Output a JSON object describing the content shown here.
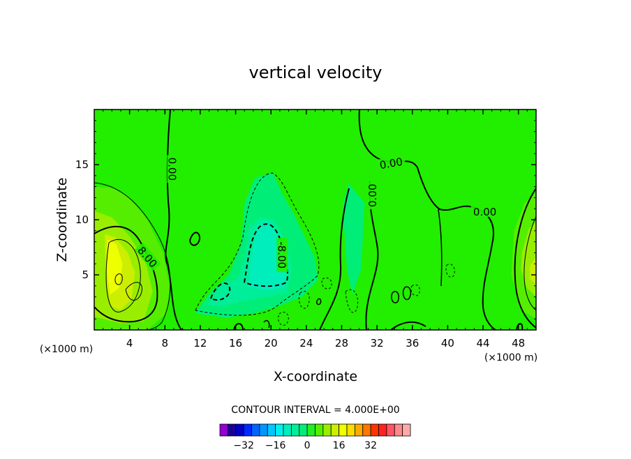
{
  "chart_data": {
    "type": "heatmap",
    "title": "vertical velocity",
    "xlabel": "X-coordinate",
    "ylabel": "Z-coordinate",
    "x_unit_left": "(×1000 m)",
    "x_unit_right": "(×1000 m)",
    "xlim": [
      0,
      50
    ],
    "ylim": [
      0,
      20
    ],
    "x_ticks": [
      4,
      8,
      12,
      16,
      20,
      24,
      28,
      32,
      36,
      40,
      44,
      48
    ],
    "y_ticks": [
      5,
      10,
      15
    ],
    "contour_interval_text": "CONTOUR INTERVAL = 4.000E+00",
    "contour_labels": [
      {
        "text": "0.00",
        "x": 8.8,
        "y": 14.6,
        "rotate": 90
      },
      {
        "text": "8.00",
        "x": 6.0,
        "y": 6.6,
        "rotate": 50
      },
      {
        "text": "-8.00",
        "x": 21.2,
        "y": 6.8,
        "rotate": 90
      },
      {
        "text": "0.00",
        "x": 33.6,
        "y": 15.1,
        "rotate": -10
      },
      {
        "text": "0.00",
        "x": 31.5,
        "y": 12.2,
        "rotate": -90
      },
      {
        "text": "0.00",
        "x": 44.2,
        "y": 10.7,
        "rotate": 0
      }
    ],
    "regions": [
      {
        "level": 4,
        "color": "#55ee00",
        "points": [
          [
            0,
            13
          ],
          [
            2,
            12.9
          ],
          [
            4,
            12
          ],
          [
            6,
            10
          ],
          [
            7.8,
            7
          ],
          [
            8.5,
            4
          ],
          [
            8.2,
            1.5
          ],
          [
            6,
            0
          ],
          [
            0,
            0
          ]
        ]
      },
      {
        "level": 8,
        "color": "#99ee00",
        "points": [
          [
            0,
            10.8
          ],
          [
            2,
            10.2
          ],
          [
            4,
            8.5
          ],
          [
            5.8,
            6.2
          ],
          [
            6.6,
            3.5
          ],
          [
            5.6,
            0.8
          ],
          [
            3,
            0.6
          ],
          [
            0,
            1.2
          ]
        ]
      },
      {
        "level": 12,
        "color": "#ccee00",
        "points": [
          [
            1.2,
            8.7
          ],
          [
            2.4,
            8.4
          ],
          [
            3.8,
            7
          ],
          [
            4.6,
            5.2
          ],
          [
            4.2,
            2.8
          ],
          [
            3,
            1.8
          ],
          [
            1.8,
            2.2
          ],
          [
            1.3,
            4.5
          ]
        ]
      },
      {
        "level": 16,
        "color": "#eeff00",
        "points": [
          [
            1.5,
            8.2
          ],
          [
            2.5,
            7.8
          ],
          [
            3.2,
            6
          ],
          [
            2.8,
            3.8
          ],
          [
            1.8,
            3.2
          ],
          [
            1.4,
            5.5
          ]
        ]
      },
      {
        "level": -4,
        "color": "#00ee77",
        "points": [
          [
            11.4,
            1.5
          ],
          [
            13,
            3.3
          ],
          [
            15.2,
            5
          ],
          [
            16.6,
            7.8
          ],
          [
            17,
            11.5
          ],
          [
            18.2,
            13.8
          ],
          [
            20.2,
            14.3
          ],
          [
            21.2,
            12.5
          ],
          [
            22.6,
            10.5
          ],
          [
            25,
            6.5
          ],
          [
            25.3,
            4.5
          ],
          [
            23.5,
            3
          ],
          [
            21,
            2.2
          ],
          [
            18.5,
            1.6
          ],
          [
            15,
            1.1
          ]
        ]
      },
      {
        "level": -8,
        "color": "#00ee99",
        "points": [
          [
            12.8,
            2.3
          ],
          [
            14.5,
            4.2
          ],
          [
            16.2,
            4.6
          ],
          [
            17,
            6.5
          ],
          [
            17.5,
            9.2
          ],
          [
            18.8,
            10.2
          ],
          [
            20.3,
            10
          ],
          [
            21.7,
            8
          ],
          [
            22.4,
            5.5
          ],
          [
            21.8,
            3.4
          ],
          [
            19.6,
            3
          ],
          [
            16.6,
            2.6
          ],
          [
            14.5,
            2.2
          ]
        ]
      },
      {
        "level": -12,
        "color": "#00eebb",
        "points": [
          [
            17.4,
            4
          ],
          [
            17.8,
            6.6
          ],
          [
            18.4,
            9.4
          ],
          [
            19.6,
            9.9
          ],
          [
            21.2,
            8
          ],
          [
            21.9,
            5.8
          ],
          [
            21.4,
            3.9
          ],
          [
            19.5,
            3.6
          ]
        ]
      },
      {
        "level": 4,
        "color": "#55ee00",
        "points": [
          [
            47.5,
            9
          ],
          [
            48.7,
            11.5
          ],
          [
            50,
            12.5
          ],
          [
            50,
            1
          ],
          [
            48.3,
            1.8
          ],
          [
            47.2,
            5
          ]
        ]
      },
      {
        "level": 8,
        "color": "#99ee00",
        "points": [
          [
            48.4,
            7
          ],
          [
            49.2,
            9.2
          ],
          [
            50,
            9.8
          ],
          [
            50,
            3
          ],
          [
            49,
            3.8
          ],
          [
            48.3,
            5.5
          ]
        ]
      },
      {
        "level": 12,
        "color": "#ccee00",
        "points": [
          [
            49.3,
            5.8
          ],
          [
            50,
            6.6
          ],
          [
            50,
            4.2
          ],
          [
            49.3,
            4.6
          ]
        ]
      },
      {
        "level": -4,
        "color": "#00ee77",
        "points": [
          [
            28.1,
            11.3
          ],
          [
            28.8,
            13.3
          ],
          [
            30.6,
            11.5
          ],
          [
            30.2,
            5.5
          ],
          [
            29.2,
            3.2
          ],
          [
            28.6,
            5.5
          ]
        ]
      }
    ],
    "colorbar": {
      "colors": [
        "#9400d3",
        "#1a0096",
        "#0000c8",
        "#0028ff",
        "#0064ff",
        "#0096ff",
        "#00c8ff",
        "#00f0f0",
        "#00eebb",
        "#00ee99",
        "#00ee77",
        "#22ee22",
        "#55ee00",
        "#99ee00",
        "#ccee00",
        "#eeff00",
        "#ffdd00",
        "#ffaa00",
        "#ff7700",
        "#ff3300",
        "#ff2222",
        "#ff5566",
        "#ff8888",
        "#ffaaaa"
      ],
      "tick_labels": [
        {
          "text": "−32",
          "index": 2
        },
        {
          "text": "−16",
          "index": 6
        },
        {
          "text": "0",
          "index": 10
        },
        {
          "text": "16",
          "index": 14
        },
        {
          "text": "32",
          "index": 18
        }
      ]
    },
    "background_color": "#22ee00"
  }
}
